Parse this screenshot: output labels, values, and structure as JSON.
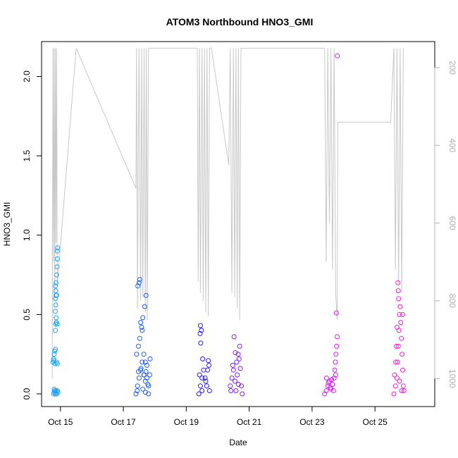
{
  "chart_data": {
    "type": "scatter",
    "title": "ATOM3 Northbound HNO3_GMI",
    "xlabel": "Date",
    "ylabel": "HNO3_GMI",
    "x_unit": "days in October",
    "xlim": [
      14.4,
      26.9
    ],
    "ylim": [
      -0.08,
      2.22
    ],
    "x_ticks": [
      {
        "label": "Oct 15",
        "value": 15
      },
      {
        "label": "Oct 17",
        "value": 17
      },
      {
        "label": "Oct 19",
        "value": 19
      },
      {
        "label": "Oct 21",
        "value": 21
      },
      {
        "label": "Oct 23",
        "value": 23
      },
      {
        "label": "Oct 25",
        "value": 25
      }
    ],
    "y_ticks": [
      "0.0",
      "0.5",
      "1.0",
      "1.5",
      "2.0"
    ],
    "y2_ticks": [
      "200",
      "400",
      "600",
      "800",
      "1000"
    ],
    "y2_lim": [
      1072,
      133
    ],
    "y2_reversed": true,
    "y2_color": "#b0b0b0",
    "line_color": "#c8c8c8",
    "marker": "open circle",
    "grid": false,
    "series": [
      {
        "color": "#1aa3ff",
        "points": [
          [
            14.78,
            0.0
          ],
          [
            14.8,
            0.01
          ],
          [
            14.82,
            0.02
          ],
          [
            14.84,
            0.0
          ],
          [
            14.86,
            0.01
          ],
          [
            14.88,
            0.0
          ],
          [
            14.9,
            0.02
          ],
          [
            14.92,
            0.01
          ],
          [
            14.8,
            0.03
          ],
          [
            14.85,
            0.02
          ],
          [
            14.76,
            0.2
          ],
          [
            14.78,
            0.22
          ],
          [
            14.8,
            0.25
          ],
          [
            14.82,
            0.27
          ],
          [
            14.84,
            0.28
          ],
          [
            14.79,
            0.21
          ],
          [
            14.83,
            0.19
          ],
          [
            14.88,
            0.2
          ],
          [
            14.9,
            0.19
          ],
          [
            14.84,
            0.4
          ],
          [
            14.85,
            0.44
          ],
          [
            14.86,
            0.48
          ],
          [
            14.84,
            0.52
          ],
          [
            14.85,
            0.56
          ],
          [
            14.84,
            0.6
          ],
          [
            14.86,
            0.62
          ],
          [
            14.85,
            0.65
          ],
          [
            14.84,
            0.68
          ],
          [
            14.86,
            0.7
          ],
          [
            14.88,
            0.75
          ],
          [
            14.89,
            0.8
          ],
          [
            14.9,
            0.85
          ],
          [
            14.9,
            0.9
          ],
          [
            14.91,
            0.92
          ],
          [
            14.88,
            0.62
          ],
          [
            14.87,
            0.45
          ],
          [
            14.9,
            0.44
          ]
        ]
      },
      {
        "color": "#1f5cff",
        "points": [
          [
            17.4,
            0.0
          ],
          [
            17.45,
            0.05
          ],
          [
            17.5,
            0.1
          ],
          [
            17.55,
            0.15
          ],
          [
            17.6,
            0.2
          ],
          [
            17.65,
            0.12
          ],
          [
            17.7,
            0.08
          ],
          [
            17.75,
            0.18
          ],
          [
            17.8,
            0.05
          ],
          [
            17.85,
            0.22
          ],
          [
            17.42,
            0.25
          ],
          [
            17.48,
            0.3
          ],
          [
            17.52,
            0.35
          ],
          [
            17.58,
            0.42
          ],
          [
            17.62,
            0.48
          ],
          [
            17.68,
            0.55
          ],
          [
            17.72,
            0.62
          ],
          [
            17.5,
            0.7
          ],
          [
            17.52,
            0.72
          ],
          [
            17.46,
            0.68
          ],
          [
            17.55,
            0.45
          ],
          [
            17.6,
            0.4
          ],
          [
            17.65,
            0.25
          ],
          [
            17.7,
            0.2
          ],
          [
            17.75,
            0.1
          ],
          [
            17.8,
            0.0
          ],
          [
            17.48,
            0.14
          ],
          [
            17.56,
            0.16
          ],
          [
            17.66,
            0.12
          ],
          [
            17.72,
            0.14
          ],
          [
            17.78,
            0.06
          ],
          [
            17.84,
            0.12
          ],
          [
            17.44,
            0.02
          ],
          [
            17.62,
            0.03
          ],
          [
            17.7,
            0.01
          ]
        ]
      },
      {
        "color": "#2a1aff",
        "points": [
          [
            19.4,
            0.0
          ],
          [
            19.45,
            0.05
          ],
          [
            19.5,
            0.1
          ],
          [
            19.55,
            0.15
          ],
          [
            19.45,
            0.43
          ],
          [
            19.48,
            0.4
          ],
          [
            19.44,
            0.38
          ],
          [
            19.46,
            0.32
          ],
          [
            19.52,
            0.22
          ],
          [
            19.6,
            0.1
          ],
          [
            19.65,
            0.05
          ],
          [
            19.68,
            0.15
          ],
          [
            19.7,
            0.21
          ],
          [
            19.72,
            0.18
          ],
          [
            19.74,
            0.02
          ],
          [
            19.42,
            0.12
          ],
          [
            19.5,
            0.02
          ],
          [
            19.62,
            0.08
          ]
        ]
      },
      {
        "color": "#8a1aff",
        "points": [
          [
            20.4,
            0.05
          ],
          [
            20.45,
            0.1
          ],
          [
            20.5,
            0.15
          ],
          [
            20.55,
            0.08
          ],
          [
            20.6,
            0.2
          ],
          [
            20.65,
            0.25
          ],
          [
            20.7,
            0.3
          ],
          [
            20.75,
            0.05
          ],
          [
            20.52,
            0.36
          ],
          [
            20.48,
            0.18
          ],
          [
            20.58,
            0.02
          ],
          [
            20.62,
            0.12
          ],
          [
            20.68,
            0.22
          ],
          [
            20.72,
            0.16
          ],
          [
            20.42,
            0.02
          ],
          [
            20.78,
            0.0
          ],
          [
            20.56,
            0.26
          ],
          [
            20.66,
            0.06
          ]
        ]
      },
      {
        "color": "#d91aff",
        "points": [
          [
            23.4,
            0.0
          ],
          [
            23.45,
            0.02
          ],
          [
            23.5,
            0.05
          ],
          [
            23.55,
            0.08
          ],
          [
            23.6,
            0.03
          ],
          [
            23.65,
            0.06
          ],
          [
            23.7,
            0.1
          ],
          [
            23.72,
            0.15
          ],
          [
            23.74,
            0.2
          ],
          [
            23.76,
            0.25
          ],
          [
            23.78,
            0.3
          ],
          [
            23.8,
            0.36
          ],
          [
            23.77,
            0.51
          ],
          [
            23.8,
            2.13
          ],
          [
            23.46,
            0.1
          ],
          [
            23.52,
            0.07
          ],
          [
            23.58,
            0.04
          ],
          [
            23.62,
            0.09
          ],
          [
            23.68,
            0.02
          ],
          [
            23.75,
            0.12
          ]
        ]
      },
      {
        "color": "#ff1ad9",
        "points": [
          [
            25.6,
            0.0
          ],
          [
            25.65,
            0.05
          ],
          [
            25.7,
            0.1
          ],
          [
            25.72,
            0.2
          ],
          [
            25.74,
            0.3
          ],
          [
            25.76,
            0.4
          ],
          [
            25.78,
            0.5
          ],
          [
            25.75,
            0.6
          ],
          [
            25.74,
            0.65
          ],
          [
            25.73,
            0.7
          ],
          [
            25.8,
            0.55
          ],
          [
            25.82,
            0.45
          ],
          [
            25.84,
            0.35
          ],
          [
            25.86,
            0.25
          ],
          [
            25.88,
            0.15
          ],
          [
            25.9,
            0.05
          ],
          [
            25.92,
            0.02
          ],
          [
            25.62,
            0.12
          ],
          [
            25.68,
            0.3
          ],
          [
            25.7,
            0.42
          ],
          [
            25.66,
            0.2
          ],
          [
            25.85,
            0.02
          ],
          [
            25.88,
            0.5
          ],
          [
            25.78,
            0.08
          ]
        ]
      }
    ],
    "pressure_track": [
      [
        14.74,
        1000
      ],
      [
        14.76,
        150
      ],
      [
        14.78,
        700
      ],
      [
        14.8,
        150
      ],
      [
        14.82,
        800
      ],
      [
        14.84,
        150
      ],
      [
        14.86,
        650
      ],
      [
        14.88,
        150
      ],
      [
        14.9,
        760
      ],
      [
        15.5,
        150
      ],
      [
        17.4,
        510
      ],
      [
        17.42,
        150
      ],
      [
        17.45,
        820
      ],
      [
        17.48,
        360
      ],
      [
        17.5,
        150
      ],
      [
        17.55,
        800
      ],
      [
        17.58,
        150
      ],
      [
        17.62,
        790
      ],
      [
        17.66,
        150
      ],
      [
        17.7,
        830
      ],
      [
        17.73,
        150
      ],
      [
        17.76,
        850
      ],
      [
        17.8,
        150
      ],
      [
        19.35,
        150
      ],
      [
        19.38,
        750
      ],
      [
        19.42,
        150
      ],
      [
        19.45,
        780
      ],
      [
        19.5,
        150
      ],
      [
        19.54,
        800
      ],
      [
        19.58,
        150
      ],
      [
        19.62,
        830
      ],
      [
        19.66,
        150
      ],
      [
        19.7,
        840
      ],
      [
        19.74,
        150
      ],
      [
        19.8,
        150
      ],
      [
        20.35,
        450
      ],
      [
        20.4,
        150
      ],
      [
        20.45,
        780
      ],
      [
        20.5,
        150
      ],
      [
        20.54,
        790
      ],
      [
        20.58,
        150
      ],
      [
        20.62,
        820
      ],
      [
        20.66,
        150
      ],
      [
        20.7,
        850
      ],
      [
        20.74,
        150
      ],
      [
        23.4,
        150
      ],
      [
        23.45,
        700
      ],
      [
        23.5,
        150
      ],
      [
        23.55,
        600
      ],
      [
        23.6,
        150
      ],
      [
        23.65,
        720
      ],
      [
        23.7,
        150
      ],
      [
        23.75,
        780
      ],
      [
        23.8,
        850
      ],
      [
        23.82,
        340
      ],
      [
        25.5,
        340
      ],
      [
        25.6,
        150
      ],
      [
        25.65,
        720
      ],
      [
        25.7,
        150
      ],
      [
        25.75,
        760
      ],
      [
        25.8,
        150
      ],
      [
        25.85,
        780
      ],
      [
        25.9,
        150
      ]
    ]
  }
}
